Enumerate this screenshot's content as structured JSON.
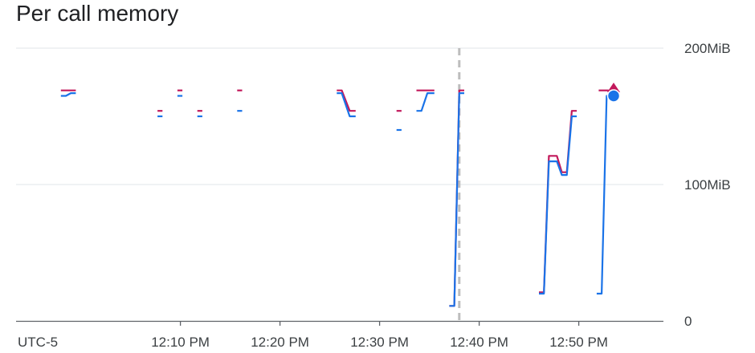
{
  "title": "Per call memory",
  "timezone_label": "UTC-5",
  "colors": {
    "series_a": "#c2185b",
    "series_b": "#1a73e8",
    "grid": "#e8eaed",
    "axis": "#5f6368",
    "cursor": "#bdbdbd"
  },
  "chart_data": {
    "type": "line",
    "x_unit": "minutes since 12:00 PM",
    "xlim": [
      -6.5,
      58.5
    ],
    "ylim": [
      0,
      200
    ],
    "y_ticks": [
      {
        "value": 0,
        "label": "0"
      },
      {
        "value": 100,
        "label": "100MiB"
      },
      {
        "value": 200,
        "label": "200MiB"
      }
    ],
    "x_ticks": [
      {
        "value": 10,
        "label": "12:10 PM"
      },
      {
        "value": 20,
        "label": "12:20 PM"
      },
      {
        "value": 30,
        "label": "12:30 PM"
      },
      {
        "value": 40,
        "label": "12:40 PM"
      },
      {
        "value": 50,
        "label": "12:50 PM"
      }
    ],
    "cursor_x": 38,
    "grid": true,
    "series": [
      {
        "color_key": "series_a",
        "segments": [
          [
            [
              -2,
              169
            ],
            [
              -0.5,
              169
            ]
          ],
          [
            [
              7.7,
              154
            ],
            [
              8.2,
              154
            ]
          ],
          [
            [
              9.7,
              169
            ],
            [
              10.2,
              169
            ]
          ],
          [
            [
              11.7,
              154
            ],
            [
              12.2,
              154
            ]
          ],
          [
            [
              15.7,
              169
            ],
            [
              16.2,
              169
            ]
          ],
          [
            [
              25.7,
              169
            ],
            [
              26.2,
              169
            ],
            [
              27,
              154
            ],
            [
              27.6,
              154
            ]
          ],
          [
            [
              31.7,
              154
            ],
            [
              32.2,
              154
            ]
          ],
          [
            [
              33.7,
              169
            ],
            [
              35.5,
              169
            ]
          ],
          [
            [
              37,
              11
            ],
            [
              37.5,
              11
            ],
            [
              38,
              169
            ],
            [
              38.5,
              169
            ]
          ],
          [
            [
              46,
              21
            ],
            [
              46.5,
              21
            ],
            [
              47,
              121
            ],
            [
              47.8,
              121
            ],
            [
              48.3,
              109
            ],
            [
              48.8,
              109
            ],
            [
              49.3,
              154
            ],
            [
              49.8,
              154
            ]
          ],
          [
            [
              52,
              169
            ],
            [
              53,
              169
            ]
          ]
        ]
      },
      {
        "color_key": "series_b",
        "segments": [
          [
            [
              -2,
              165
            ],
            [
              -1.5,
              165
            ],
            [
              -1,
              167
            ],
            [
              -0.5,
              167
            ]
          ],
          [
            [
              7.7,
              150
            ],
            [
              8.2,
              150
            ]
          ],
          [
            [
              9.7,
              165
            ],
            [
              10.2,
              165
            ]
          ],
          [
            [
              11.7,
              150
            ],
            [
              12.2,
              150
            ]
          ],
          [
            [
              15.7,
              154
            ],
            [
              16.2,
              154
            ]
          ],
          [
            [
              25.7,
              167
            ],
            [
              26.2,
              167
            ],
            [
              27,
              150
            ],
            [
              27.6,
              150
            ]
          ],
          [
            [
              31.7,
              140
            ],
            [
              32.2,
              140
            ]
          ],
          [
            [
              33.7,
              154
            ],
            [
              34.2,
              154
            ],
            [
              34.8,
              167
            ],
            [
              35.5,
              167
            ]
          ],
          [
            [
              37,
              11
            ],
            [
              37.5,
              11
            ],
            [
              38,
              167
            ],
            [
              38.5,
              167
            ]
          ],
          [
            [
              46,
              20
            ],
            [
              46.5,
              20
            ],
            [
              47,
              117
            ],
            [
              47.8,
              117
            ],
            [
              48.3,
              107
            ],
            [
              48.8,
              107
            ],
            [
              49.3,
              150
            ],
            [
              49.8,
              150
            ]
          ],
          [
            [
              51.8,
              20
            ],
            [
              52.3,
              20
            ],
            [
              52.8,
              165
            ],
            [
              53.1,
              165
            ]
          ]
        ]
      }
    ],
    "end_markers": [
      {
        "color_key": "series_a",
        "shape": "triangle",
        "x": 53.5,
        "y": 170
      },
      {
        "color_key": "series_b",
        "shape": "circle",
        "x": 53.5,
        "y": 165
      }
    ]
  }
}
